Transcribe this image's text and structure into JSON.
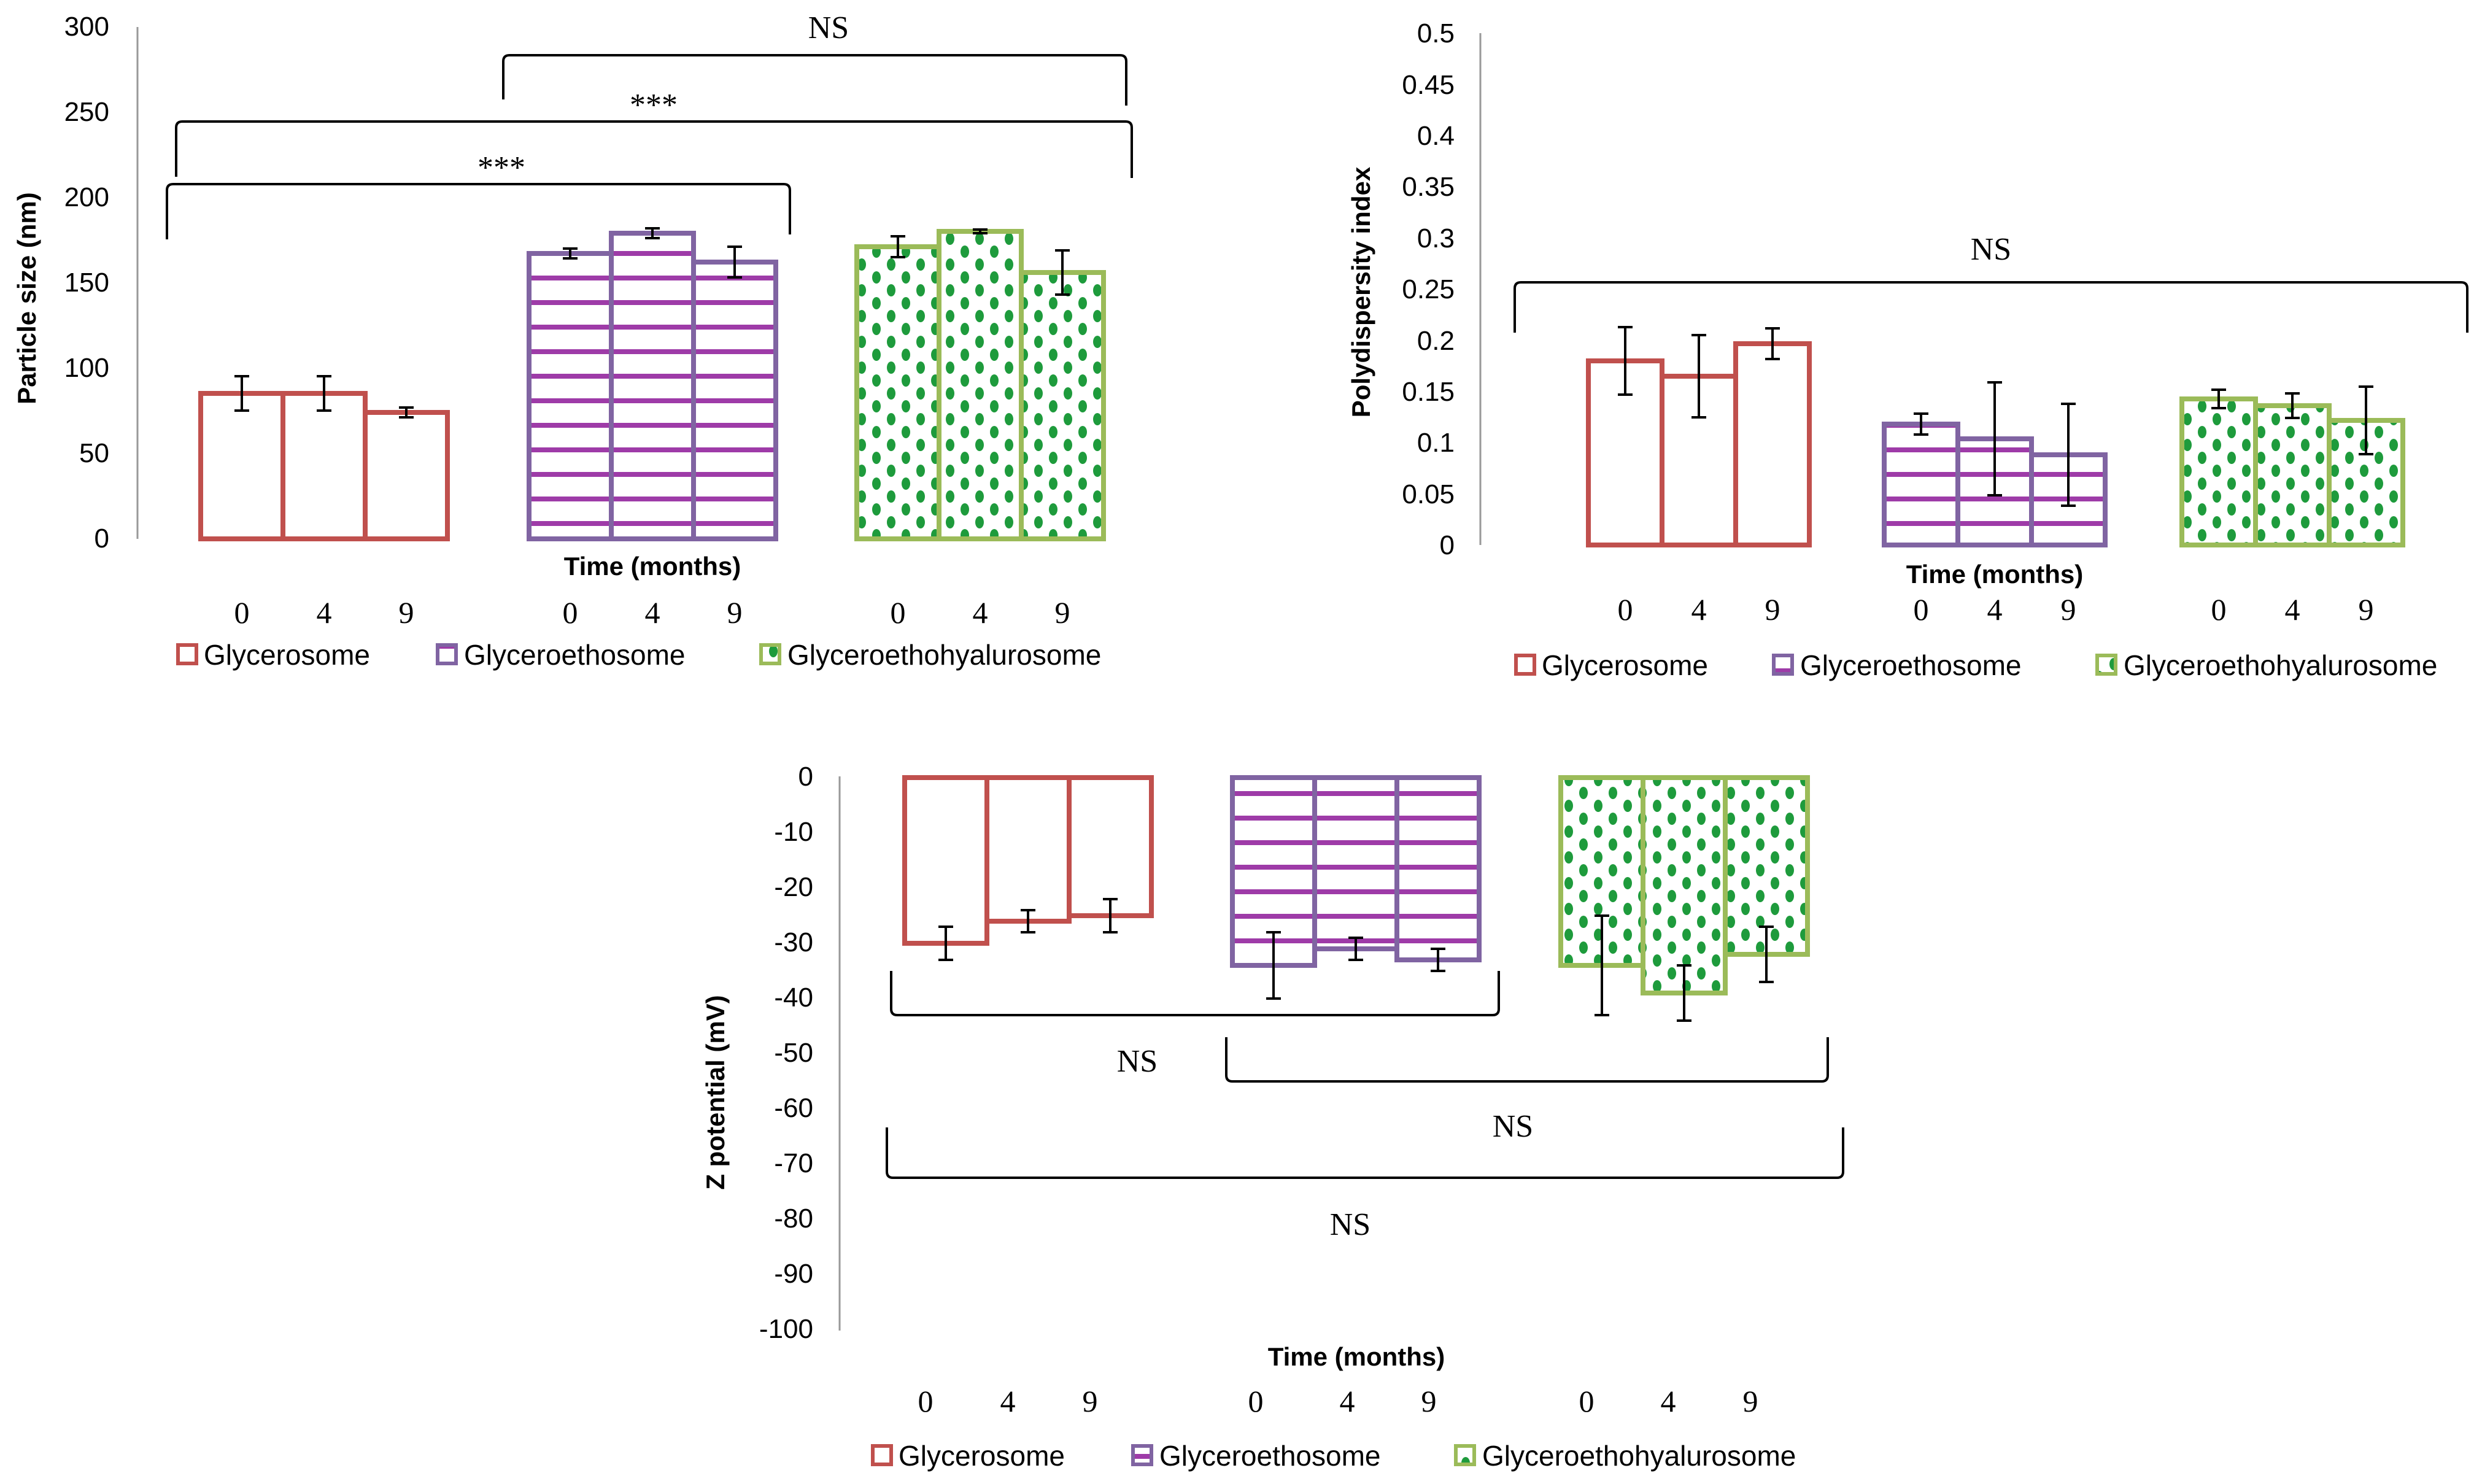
{
  "colors": {
    "glycerosome": "#C0504D",
    "glyceroethosome": "#8064A2",
    "glyceroethohyalurosome": "#9BBB59",
    "stripe": "#9E3BA8",
    "dot": "#1E9B3C"
  },
  "legend": [
    "Glycerosome",
    "Glyceroethosome",
    "Glyceroethohyalurosome"
  ],
  "chart_data": [
    {
      "type": "bar",
      "ylabel": "Particle size (nm)",
      "xlabel": "Time (months)",
      "categories": [
        "0",
        "4",
        "9"
      ],
      "ylim": [
        0,
        300
      ],
      "yticks": [
        "0",
        "50",
        "100",
        "150",
        "200",
        "250",
        "300"
      ],
      "series": [
        {
          "name": "Glycerosome",
          "values": [
            85,
            85,
            74
          ],
          "errors": [
            10,
            10,
            3
          ]
        },
        {
          "name": "Glyceroethosome",
          "values": [
            167,
            179,
            162
          ],
          "errors": [
            3,
            3,
            9
          ]
        },
        {
          "name": "Glyceroethohyalurosome",
          "values": [
            171,
            180,
            156
          ],
          "errors": [
            6,
            1,
            13
          ]
        }
      ],
      "annotations": [
        "NS",
        "***",
        "***"
      ]
    },
    {
      "type": "bar",
      "ylabel": "Polydispersity index",
      "xlabel": "Time (months)",
      "categories": [
        "0",
        "4",
        "9"
      ],
      "ylim": [
        0,
        0.5
      ],
      "yticks": [
        "0",
        "0.05",
        "0.1",
        "0.15",
        "0.2",
        "0.25",
        "0.3",
        "0.35",
        "0.4",
        "0.45",
        "0.5"
      ],
      "series": [
        {
          "name": "Glycerosome",
          "values": [
            0.18,
            0.165,
            0.197
          ],
          "errors": [
            0.033,
            0.04,
            0.015
          ]
        },
        {
          "name": "Glyceroethosome",
          "values": [
            0.118,
            0.104,
            0.088
          ],
          "errors": [
            0.01,
            0.055,
            0.05
          ]
        },
        {
          "name": "Glyceroethohyalurosome",
          "values": [
            0.143,
            0.136,
            0.122
          ],
          "errors": [
            0.009,
            0.012,
            0.033
          ]
        }
      ],
      "annotations": [
        "NS"
      ]
    },
    {
      "type": "bar",
      "ylabel": "Z potential (mV)",
      "xlabel": "Time (months)",
      "categories": [
        "0",
        "4",
        "9"
      ],
      "ylim": [
        -100,
        0
      ],
      "yticks": [
        "0",
        "-10",
        "-20",
        "-30",
        "-40",
        "-50",
        "-60",
        "-70",
        "-80",
        "-90",
        "-100"
      ],
      "series": [
        {
          "name": "Glycerosome",
          "values": [
            -30,
            -26,
            -25
          ],
          "errors": [
            3,
            2,
            3
          ]
        },
        {
          "name": "Glyceroethosome",
          "values": [
            -34,
            -31,
            -33
          ],
          "errors": [
            6,
            2,
            2
          ]
        },
        {
          "name": "Glyceroethohyalurosome",
          "values": [
            -34,
            -39,
            -32
          ],
          "errors": [
            9,
            5,
            5
          ]
        }
      ],
      "annotations": [
        "NS",
        "NS",
        "NS"
      ]
    }
  ]
}
